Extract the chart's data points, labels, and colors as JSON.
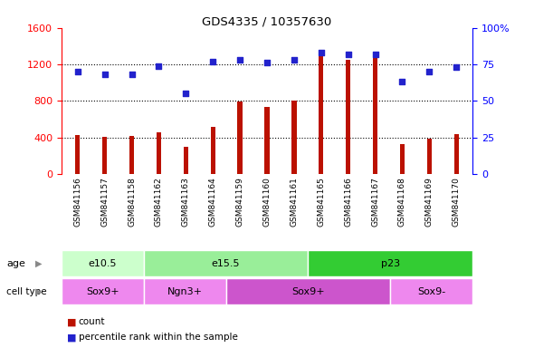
{
  "title": "GDS4335 / 10357630",
  "samples": [
    "GSM841156",
    "GSM841157",
    "GSM841158",
    "GSM841162",
    "GSM841163",
    "GSM841164",
    "GSM841159",
    "GSM841160",
    "GSM841161",
    "GSM841165",
    "GSM841166",
    "GSM841167",
    "GSM841168",
    "GSM841169",
    "GSM841170"
  ],
  "counts": [
    430,
    410,
    415,
    460,
    300,
    520,
    790,
    730,
    800,
    1360,
    1250,
    1310,
    330,
    390,
    440
  ],
  "percentiles": [
    70,
    68,
    68,
    74,
    55,
    77,
    78,
    76,
    78,
    83,
    82,
    82,
    63,
    70,
    73
  ],
  "ylim_left": [
    0,
    1600
  ],
  "ylim_right": [
    0,
    100
  ],
  "yticks_left": [
    0,
    400,
    800,
    1200,
    1600
  ],
  "yticks_right": [
    0,
    25,
    50,
    75,
    100
  ],
  "ytick_right_labels": [
    "0",
    "25",
    "50",
    "75",
    "100%"
  ],
  "bar_color": "#bb1100",
  "dot_color": "#2222cc",
  "age_groups": [
    {
      "label": "e10.5",
      "start": 0,
      "end": 3,
      "color": "#ccffcc"
    },
    {
      "label": "e15.5",
      "start": 3,
      "end": 9,
      "color": "#99ee99"
    },
    {
      "label": "p23",
      "start": 9,
      "end": 15,
      "color": "#33cc33"
    }
  ],
  "cell_type_groups": [
    {
      "label": "Sox9+",
      "start": 0,
      "end": 3,
      "color": "#ee88ee"
    },
    {
      "label": "Ngn3+",
      "start": 3,
      "end": 6,
      "color": "#ee88ee"
    },
    {
      "label": "Sox9+",
      "start": 6,
      "end": 12,
      "color": "#cc55cc"
    },
    {
      "label": "Sox9-",
      "start": 12,
      "end": 15,
      "color": "#ee88ee"
    }
  ],
  "legend_count_label": "count",
  "legend_pct_label": "percentile rank within the sample",
  "bg_color": "#ffffff",
  "plot_bg_color": "#ffffff",
  "tick_label_area_color": "#cccccc"
}
